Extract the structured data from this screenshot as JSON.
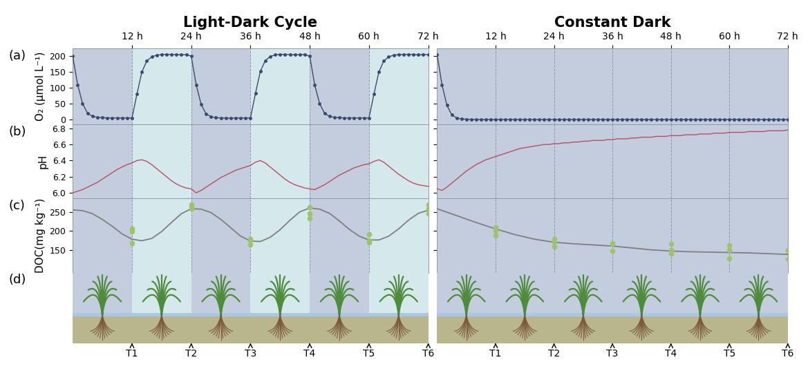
{
  "chart_data": [
    {
      "type": "panel_column",
      "title": "Light-Dark Cycle",
      "xlim": [
        0,
        72
      ],
      "xticks": [
        {
          "value": 12,
          "label": "12 h"
        },
        {
          "value": 24,
          "label": "24 h"
        },
        {
          "value": 36,
          "label": "36 h"
        },
        {
          "value": 48,
          "label": "48 h"
        },
        {
          "value": 60,
          "label": "60 h"
        },
        {
          "value": 72,
          "label": "72 h"
        }
      ],
      "light_periods": [
        [
          12,
          24
        ],
        [
          36,
          48
        ],
        [
          60,
          72
        ]
      ],
      "panels": [
        {
          "type": "line",
          "annotation": "(a)",
          "y_label": "O₂ (µmol L⁻¹)",
          "tick_labels": true,
          "grid": true,
          "ylim": [
            -15,
            225
          ],
          "yticks": [
            0,
            50,
            100,
            150,
            200
          ],
          "color": "#3b4a6b",
          "marker": "o",
          "x": [
            0,
            1,
            2,
            3,
            4,
            5,
            6,
            7,
            8,
            9,
            10,
            11,
            12,
            13,
            14,
            15,
            16,
            17,
            18,
            19,
            20,
            21,
            22,
            23,
            24,
            25,
            26,
            27,
            28,
            29,
            30,
            31,
            32,
            33,
            34,
            35,
            36,
            37,
            38,
            39,
            40,
            41,
            42,
            43,
            44,
            45,
            46,
            47,
            48,
            49,
            50,
            51,
            52,
            53,
            54,
            55,
            56,
            57,
            58,
            59,
            60,
            61,
            62,
            63,
            64,
            65,
            66,
            67,
            68,
            69,
            70,
            71,
            72
          ],
          "values": [
            200,
            110,
            50,
            20,
            10,
            7,
            6,
            5,
            5,
            5,
            5,
            5,
            5,
            80,
            150,
            185,
            198,
            203,
            205,
            206,
            205,
            205,
            204,
            205,
            200,
            110,
            48,
            18,
            9,
            6,
            5,
            5,
            4,
            5,
            5,
            5,
            5,
            82,
            152,
            186,
            199,
            204,
            206,
            205,
            205,
            204,
            205,
            205,
            200,
            110,
            50,
            20,
            10,
            7,
            6,
            5,
            5,
            5,
            5,
            5,
            5,
            80,
            150,
            185,
            198,
            203,
            205,
            205,
            206,
            205,
            204,
            205,
            205
          ]
        },
        {
          "type": "line",
          "annotation": "(b)",
          "y_label": "pH",
          "tick_labels": "y",
          "grid": true,
          "ylim": [
            5.93,
            6.85
          ],
          "yticks": [
            {
              "value": 6,
              "label": "6.0"
            },
            6.2,
            6.4,
            6.6,
            6.8
          ],
          "color": "#b5505f",
          "x": [
            0,
            1,
            2,
            3,
            4,
            5,
            6,
            7,
            8,
            9,
            10,
            11,
            12,
            13,
            14,
            15,
            16,
            17,
            18,
            19,
            20,
            21,
            22,
            23,
            24,
            25,
            26,
            27,
            28,
            29,
            30,
            31,
            32,
            33,
            34,
            35,
            36,
            37,
            38,
            39,
            40,
            41,
            42,
            43,
            44,
            45,
            46,
            47,
            48,
            49,
            50,
            51,
            52,
            53,
            54,
            55,
            56,
            57,
            58,
            59,
            60,
            61,
            62,
            63,
            64,
            65,
            66,
            67,
            68,
            69,
            70,
            71,
            72
          ],
          "values": [
            6.0,
            6.02,
            6.04,
            6.07,
            6.1,
            6.13,
            6.17,
            6.21,
            6.25,
            6.29,
            6.32,
            6.35,
            6.37,
            6.4,
            6.41,
            6.39,
            6.35,
            6.3,
            6.25,
            6.2,
            6.15,
            6.11,
            6.08,
            6.06,
            6.05,
            6.0,
            6.03,
            6.07,
            6.11,
            6.15,
            6.19,
            6.22,
            6.25,
            6.28,
            6.3,
            6.32,
            6.34,
            6.38,
            6.4,
            6.37,
            6.32,
            6.27,
            6.22,
            6.17,
            6.13,
            6.1,
            6.08,
            6.06,
            6.05,
            6.04,
            6.07,
            6.1,
            6.14,
            6.18,
            6.22,
            6.25,
            6.28,
            6.31,
            6.33,
            6.35,
            6.36,
            6.39,
            6.41,
            6.38,
            6.33,
            6.28,
            6.23,
            6.19,
            6.15,
            6.12,
            6.1,
            6.09,
            6.08
          ]
        },
        {
          "type": "line",
          "annotation": "(c)",
          "y_label": "DOC(mg kg⁻¹)",
          "tick_labels": "y",
          "grid": true,
          "ylim": [
            90,
            285
          ],
          "yticks": [
            150,
            200,
            250
          ],
          "series": [
            {
              "type": "line",
              "color": "#7f7f7f",
              "x": [
                0,
                2,
                4,
                6,
                8,
                10,
                12,
                14,
                16,
                18,
                20,
                22,
                24,
                26,
                28,
                30,
                32,
                34,
                36,
                38,
                40,
                42,
                44,
                46,
                48,
                50,
                52,
                54,
                56,
                58,
                60,
                62,
                64,
                66,
                68,
                70,
                72
              ],
              "values": [
                255,
                253,
                245,
                230,
                212,
                192,
                178,
                174,
                180,
                198,
                222,
                245,
                258,
                257,
                248,
                230,
                208,
                186,
                173,
                172,
                183,
                203,
                228,
                250,
                260,
                257,
                246,
                226,
                204,
                186,
                176,
                176,
                186,
                205,
                228,
                246,
                254
              ]
            },
            {
              "type": "scatter",
              "color": "#9cc46b",
              "x": [
                12,
                12,
                12,
                24,
                24,
                24,
                36,
                36,
                36,
                48,
                48,
                48,
                60,
                60,
                60,
                72,
                72,
                72
              ],
              "values": [
                205,
                198,
                168,
                270,
                262,
                258,
                178,
                174,
                163,
                262,
                245,
                232,
                192,
                175,
                170,
                270,
                258,
                245
              ]
            }
          ]
        },
        {
          "type": "illustration",
          "annotation": "(d)",
          "sampling": {
            "x": [
              12,
              24,
              36,
              48,
              60,
              72
            ],
            "labels": [
              "T1",
              "T2",
              "T3",
              "T4",
              "T5",
              "T6"
            ]
          }
        }
      ]
    },
    {
      "type": "panel_column",
      "title": "Constant Dark",
      "xlim": [
        0,
        72
      ],
      "xticks": [
        {
          "value": 12,
          "label": "12 h"
        },
        {
          "value": 24,
          "label": "24 h"
        },
        {
          "value": 36,
          "label": "36 h"
        },
        {
          "value": 48,
          "label": "48 h"
        },
        {
          "value": 60,
          "label": "60 h"
        },
        {
          "value": 72,
          "label": "72 h"
        }
      ],
      "light_periods": [],
      "panels": [
        {
          "type": "line",
          "tick_labels": "x",
          "grid": true,
          "ylim": [
            -15,
            225
          ],
          "yticks": [
            0,
            50,
            100,
            150,
            200
          ],
          "color": "#3b4a6b",
          "marker": "o",
          "x": [
            0,
            1,
            2,
            3,
            4,
            5,
            6,
            7,
            8,
            9,
            10,
            11,
            12,
            13,
            14,
            15,
            16,
            17,
            18,
            19,
            20,
            21,
            22,
            23,
            24,
            25,
            26,
            27,
            28,
            29,
            30,
            31,
            32,
            33,
            34,
            35,
            36,
            37,
            38,
            39,
            40,
            41,
            42,
            43,
            44,
            45,
            46,
            47,
            48,
            49,
            50,
            51,
            52,
            53,
            54,
            55,
            56,
            57,
            58,
            59,
            60,
            61,
            62,
            63,
            64,
            65,
            66,
            67,
            68,
            69,
            70,
            71,
            72
          ],
          "values": [
            205,
            110,
            45,
            15,
            5,
            2,
            1,
            0,
            0,
            0,
            0,
            0,
            0,
            0,
            0,
            0,
            0,
            0,
            0,
            0,
            0,
            0,
            0,
            0,
            0,
            0,
            0,
            0,
            0,
            0,
            0,
            0,
            0,
            0,
            0,
            0,
            0,
            0,
            0,
            0,
            0,
            0,
            0,
            0,
            0,
            0,
            0,
            0,
            0,
            0,
            0,
            0,
            0,
            0,
            0,
            0,
            0,
            0,
            0,
            0,
            0,
            0,
            0,
            0,
            0,
            0,
            0,
            0,
            0,
            0,
            0,
            0,
            0
          ]
        },
        {
          "type": "line",
          "tick_labels": false,
          "grid": true,
          "ylim": [
            5.93,
            6.85
          ],
          "yticks": [
            {
              "value": 6,
              "label": "6.0"
            },
            6.2,
            6.4,
            6.6,
            6.8
          ],
          "color": "#b5505f",
          "x": [
            0,
            1,
            2,
            3,
            4,
            5,
            6,
            7,
            8,
            9,
            10,
            11,
            12,
            13,
            14,
            15,
            16,
            17,
            18,
            19,
            20,
            21,
            22,
            23,
            24,
            25,
            26,
            27,
            28,
            29,
            30,
            31,
            32,
            33,
            34,
            35,
            36,
            37,
            38,
            39,
            40,
            41,
            42,
            43,
            44,
            45,
            46,
            47,
            48,
            49,
            50,
            51,
            52,
            53,
            54,
            55,
            56,
            57,
            58,
            59,
            60,
            61,
            62,
            63,
            64,
            65,
            66,
            67,
            68,
            69,
            70,
            71,
            72
          ],
          "values": [
            6.05,
            6.03,
            6.07,
            6.12,
            6.17,
            6.22,
            6.27,
            6.31,
            6.35,
            6.38,
            6.41,
            6.43,
            6.45,
            6.47,
            6.49,
            6.51,
            6.53,
            6.55,
            6.56,
            6.57,
            6.58,
            6.59,
            6.6,
            6.6,
            6.61,
            6.61,
            6.62,
            6.62,
            6.63,
            6.63,
            6.64,
            6.64,
            6.65,
            6.65,
            6.65,
            6.66,
            6.66,
            6.67,
            6.67,
            6.67,
            6.68,
            6.68,
            6.69,
            6.69,
            6.69,
            6.7,
            6.7,
            6.7,
            6.71,
            6.71,
            6.71,
            6.72,
            6.72,
            6.72,
            6.73,
            6.73,
            6.73,
            6.74,
            6.74,
            6.74,
            6.75,
            6.75,
            6.75,
            6.75,
            6.76,
            6.76,
            6.76,
            6.76,
            6.77,
            6.77,
            6.77,
            6.77,
            6.78
          ]
        },
        {
          "type": "line",
          "tick_labels": false,
          "grid": true,
          "ylim": [
            90,
            285
          ],
          "yticks": [
            150,
            200,
            250
          ],
          "series": [
            {
              "type": "line",
              "color": "#7f7f7f",
              "x": [
                0,
                4,
                8,
                12,
                16,
                20,
                24,
                28,
                32,
                36,
                40,
                44,
                48,
                52,
                56,
                60,
                64,
                68,
                72
              ],
              "values": [
                258,
                240,
                222,
                205,
                190,
                178,
                170,
                166,
                163,
                160,
                155,
                150,
                147,
                145,
                144,
                143,
                142,
                140,
                138
              ]
            },
            {
              "type": "scatter",
              "color": "#9cc46b",
              "x": [
                12,
                12,
                12,
                24,
                24,
                24,
                36,
                36,
                36,
                48,
                48,
                48,
                60,
                60,
                60,
                72,
                72,
                72
              ],
              "values": [
                210,
                200,
                188,
                178,
                172,
                158,
                168,
                165,
                147,
                165,
                150,
                140,
                162,
                150,
                128,
                150,
                147,
                125
              ]
            }
          ]
        },
        {
          "type": "illustration",
          "sampling": {
            "x": [
              12,
              24,
              36,
              48,
              60,
              72
            ],
            "labels": [
              "T1",
              "T2",
              "T3",
              "T4",
              "T5",
              "T6"
            ]
          }
        }
      ]
    }
  ]
}
